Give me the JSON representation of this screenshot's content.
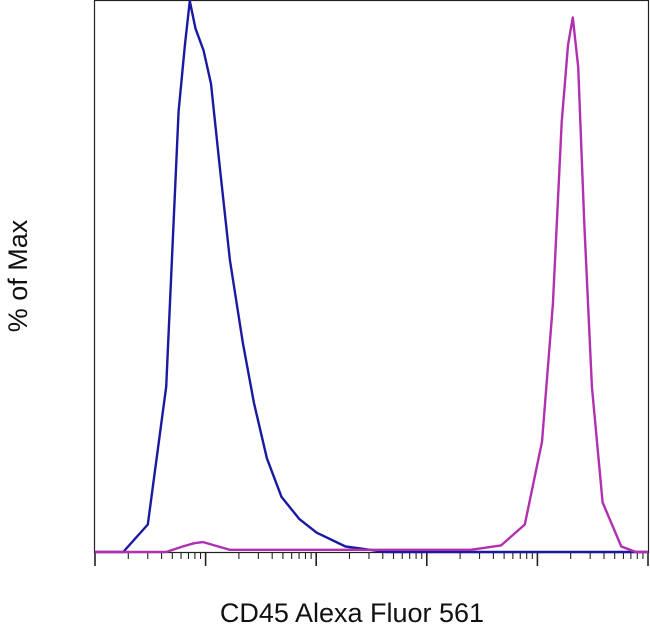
{
  "chart_data": {
    "type": "line",
    "title": "",
    "xlabel": "CD45 Alexa Fluor 561",
    "ylabel": "% of Max",
    "xscale": "log",
    "xlim": [
      1,
      100000
    ],
    "ylim": [
      0,
      100
    ],
    "grid": false,
    "legend": "none",
    "tick_labels_shown": false,
    "series": [
      {
        "color": "#1a1aa0",
        "x": [
          1,
          1.8,
          3,
          4.4,
          5.7,
          6.5,
          7.2,
          8.1,
          9.6,
          11.2,
          13.4,
          16.6,
          21.7,
          27.4,
          35.8,
          48.6,
          70.2,
          101,
          184,
          430,
          1870,
          100000
        ],
        "y": [
          0,
          0,
          5,
          30,
          80,
          92,
          100,
          95,
          91,
          85,
          70,
          53,
          38,
          27,
          17,
          10,
          6,
          3.5,
          1,
          0,
          0,
          0
        ]
      },
      {
        "color": "#b030b0",
        "x": [
          1,
          4.4,
          6.2,
          7.9,
          9.5,
          12,
          16.6,
          2500,
          4700,
          7700,
          11000,
          13800,
          16600,
          18900,
          20900,
          23400,
          26500,
          31100,
          38900,
          57300,
          77700,
          100000
        ],
        "y": [
          0,
          0,
          1,
          1.6,
          1.8,
          1.2,
          0.4,
          0.4,
          1.2,
          5,
          20,
          45,
          78,
          92,
          97,
          88,
          60,
          30,
          9,
          1,
          0,
          0
        ]
      }
    ]
  }
}
